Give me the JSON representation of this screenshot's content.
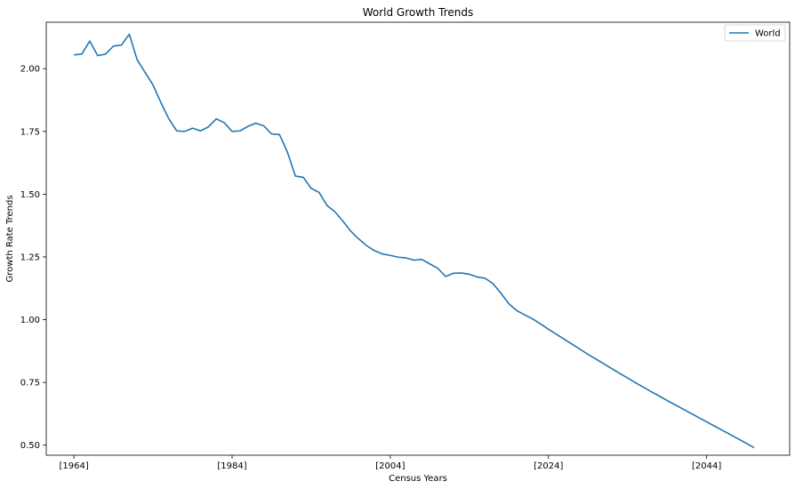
{
  "chart_data": {
    "type": "line",
    "title": "World Growth Trends",
    "xlabel": "Census Years",
    "ylabel": "Growth Rate Trends",
    "xlim": [
      1960.5,
      2054.5
    ],
    "ylim": [
      0.46,
      2.185
    ],
    "x_ticks": [
      {
        "value": 1964,
        "label": "[1964]"
      },
      {
        "value": 1984,
        "label": "[1984]"
      },
      {
        "value": 2004,
        "label": "[2004]"
      },
      {
        "value": 2024,
        "label": "[2024]"
      },
      {
        "value": 2044,
        "label": "[2044]"
      }
    ],
    "y_ticks": [
      {
        "value": 0.5,
        "label": "0.50"
      },
      {
        "value": 0.75,
        "label": "0.75"
      },
      {
        "value": 1.0,
        "label": "1.00"
      },
      {
        "value": 1.25,
        "label": "1.25"
      },
      {
        "value": 1.5,
        "label": "1.50"
      },
      {
        "value": 1.75,
        "label": "1.75"
      },
      {
        "value": 2.0,
        "label": "2.00"
      }
    ],
    "grid": false,
    "legend": {
      "position": "top-right"
    },
    "series": [
      {
        "name": "World",
        "color": "#1f77b4",
        "x": [
          1964,
          1965,
          1966,
          1967,
          1968,
          1969,
          1970,
          1971,
          1972,
          1973,
          1974,
          1975,
          1976,
          1977,
          1978,
          1979,
          1980,
          1981,
          1982,
          1983,
          1984,
          1985,
          1986,
          1987,
          1988,
          1989,
          1990,
          1991,
          1992,
          1993,
          1994,
          1995,
          1996,
          1997,
          1998,
          1999,
          2000,
          2001,
          2002,
          2003,
          2004,
          2005,
          2006,
          2007,
          2008,
          2009,
          2010,
          2011,
          2012,
          2013,
          2014,
          2015,
          2016,
          2017,
          2018,
          2019,
          2020,
          2021,
          2022,
          2023,
          2024,
          2025,
          2026,
          2027,
          2028,
          2029,
          2030,
          2031,
          2032,
          2033,
          2034,
          2035,
          2036,
          2037,
          2038,
          2039,
          2040,
          2041,
          2042,
          2043,
          2044,
          2045,
          2046,
          2047,
          2048,
          2049,
          2050
        ],
        "values": [
          2.055,
          2.058,
          2.11,
          2.052,
          2.058,
          2.09,
          2.094,
          2.137,
          2.035,
          1.985,
          1.935,
          1.865,
          1.8,
          1.752,
          1.75,
          1.763,
          1.752,
          1.768,
          1.8,
          1.785,
          1.75,
          1.752,
          1.77,
          1.783,
          1.772,
          1.74,
          1.737,
          1.667,
          1.572,
          1.567,
          1.523,
          1.507,
          1.455,
          1.43,
          1.393,
          1.353,
          1.322,
          1.295,
          1.275,
          1.262,
          1.256,
          1.249,
          1.246,
          1.237,
          1.24,
          1.222,
          1.205,
          1.172,
          1.185,
          1.186,
          1.181,
          1.17,
          1.165,
          1.143,
          1.105,
          1.063,
          1.036,
          1.019,
          1.003,
          0.983,
          0.962,
          0.942,
          0.922,
          0.902,
          0.882,
          0.862,
          0.843,
          0.824,
          0.805,
          0.786,
          0.768,
          0.749,
          0.731,
          0.713,
          0.696,
          0.678,
          0.661,
          0.644,
          0.627,
          0.61,
          0.593,
          0.576,
          0.559,
          0.542,
          0.525,
          0.508,
          0.49
        ]
      }
    ]
  }
}
